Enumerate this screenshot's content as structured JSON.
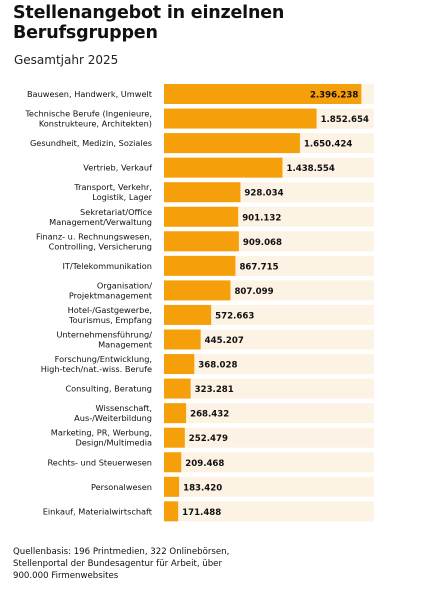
{
  "header": {
    "title_line1": "Stellenangebot in einzelnen",
    "title_line2": "Berufsgruppen",
    "subtitle": "Gesamtjahr 2025"
  },
  "footer": {
    "line1": "Quellenbasis: 196 Printmedien, 322 Onlinebörsen,",
    "line2": "Stellenportal der Bundesagentur für Arbeit, über",
    "line3": "900.000 Firmenwebsites"
  },
  "colors": {
    "bar": "#f5a00b",
    "track": "#fdf3e4",
    "text": "#111111"
  },
  "chart_data": {
    "type": "bar",
    "orientation": "horizontal",
    "title": "Stellenangebot in einzelnen Berufsgruppen",
    "subtitle": "Gesamtjahr 2025",
    "categories": [
      [
        "Bauwesen, Handwerk, Umwelt"
      ],
      [
        "Technische Berufe (Ingenieure,",
        "Konstrukteure, Architekten)"
      ],
      [
        "Gesundheit, Medizin, Soziales"
      ],
      [
        "Vertrieb, Verkauf"
      ],
      [
        "Transport, Verkehr,",
        "Logistik, Lager"
      ],
      [
        "Sekretariat/Office",
        "Management/Verwaltung"
      ],
      [
        "Finanz- u. Rechnungswesen,",
        "Controlling, Versicherung"
      ],
      [
        "IT/Telekommunikation"
      ],
      [
        "Organisation/",
        "Projektmanagement"
      ],
      [
        "Hotel-/Gastgewerbe,",
        "Tourismus, Empfang"
      ],
      [
        "Unternehmensführung/",
        "Management"
      ],
      [
        "Forschung/Entwicklung,",
        "High-tech/nat.-wiss. Berufe"
      ],
      [
        "Consulting, Beratung"
      ],
      [
        "Wissenschaft,",
        "Aus-/Weiterbildung"
      ],
      [
        "Marketing, PR, Werbung,",
        "Design/Multimedia"
      ],
      [
        "Rechts- und Steuerwesen"
      ],
      [
        "Personalwesen"
      ],
      [
        "Einkauf, Materialwirtschaft"
      ]
    ],
    "values": [
      2396238,
      1852654,
      1650424,
      1438554,
      928034,
      901132,
      909068,
      867715,
      807099,
      572663,
      445207,
      368028,
      323281,
      268432,
      252479,
      209468,
      183420,
      171488
    ],
    "value_labels": [
      "2.396.238",
      "1.852.654",
      "1.650.424",
      "1.438.554",
      "928.034",
      "901.132",
      "909.068",
      "867.715",
      "807.099",
      "572.663",
      "445.207",
      "368.028",
      "323.281",
      "268.432",
      "252.479",
      "209.468",
      "183.420",
      "171.488"
    ],
    "xlim": [
      0,
      2550000
    ],
    "grid": false,
    "legend": "none"
  }
}
